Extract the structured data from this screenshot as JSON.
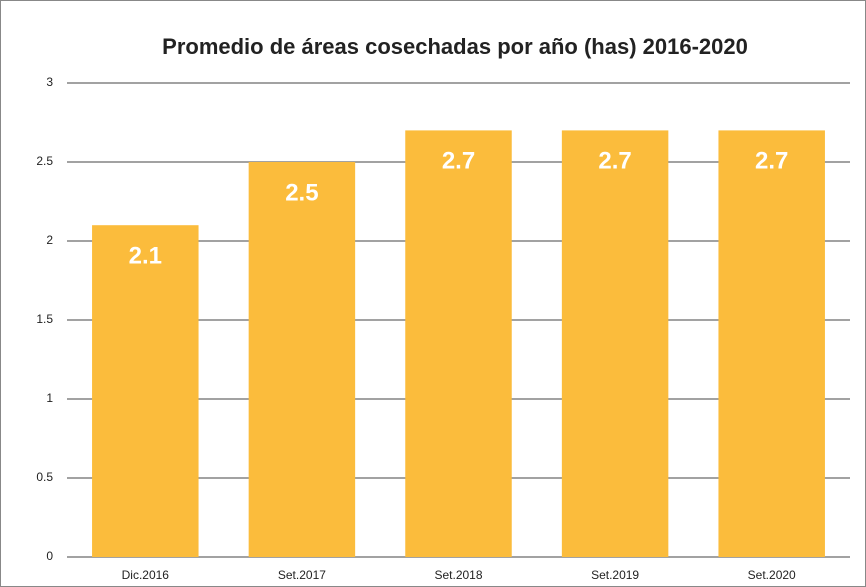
{
  "chart_data": {
    "type": "bar",
    "title": "Promedio de áreas cosechadas por año (has) 2016-2020",
    "categories": [
      "Dic.2016",
      "Set.2017",
      "Set.2018",
      "Set.2019",
      "Set.2020"
    ],
    "values": [
      2.1,
      2.5,
      2.7,
      2.7,
      2.7
    ],
    "color": "#fbbc3c",
    "ylim": [
      0,
      3
    ],
    "yticks": [
      0,
      0.5,
      1,
      1.5,
      2,
      2.5,
      3
    ],
    "grid": true
  }
}
